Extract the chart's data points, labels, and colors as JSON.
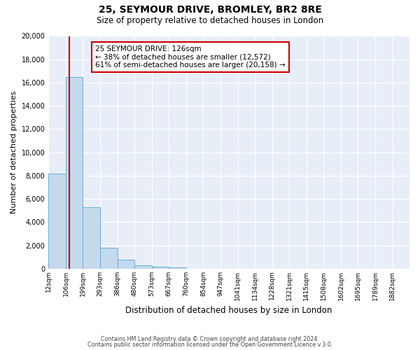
{
  "title": "25, SEYMOUR DRIVE, BROMLEY, BR2 8RE",
  "subtitle": "Size of property relative to detached houses in London",
  "xlabel": "Distribution of detached houses by size in London",
  "ylabel": "Number of detached properties",
  "bar_values": [
    8200,
    16500,
    5300,
    1800,
    750,
    300,
    150,
    100,
    0,
    0,
    0,
    0,
    0,
    0,
    0,
    0,
    0,
    0,
    0,
    0
  ],
  "bin_labels": [
    "12sqm",
    "106sqm",
    "199sqm",
    "293sqm",
    "386sqm",
    "480sqm",
    "573sqm",
    "667sqm",
    "760sqm",
    "854sqm",
    "947sqm",
    "1041sqm",
    "1134sqm",
    "1228sqm",
    "1321sqm",
    "1415sqm",
    "1508sqm",
    "1602sqm",
    "1695sqm",
    "1789sqm",
    "1882sqm"
  ],
  "bin_edges": [
    12,
    106,
    199,
    293,
    386,
    480,
    573,
    667,
    760,
    854,
    947,
    1041,
    1134,
    1228,
    1321,
    1415,
    1508,
    1602,
    1695,
    1789,
    1882
  ],
  "bar_color": "#c5d9ed",
  "bar_edge_color": "#6aadd5",
  "property_line_x": 126,
  "property_line_color": "#cc0000",
  "annotation_title": "25 SEYMOUR DRIVE: 126sqm",
  "annotation_line1": "← 38% of detached houses are smaller (12,572)",
  "annotation_line2": "61% of semi-detached houses are larger (20,158) →",
  "annotation_box_facecolor": "#ffffff",
  "annotation_box_edgecolor": "#cc0000",
  "ylim": [
    0,
    20000
  ],
  "yticks": [
    0,
    2000,
    4000,
    6000,
    8000,
    10000,
    12000,
    14000,
    16000,
    18000,
    20000
  ],
  "footer1": "Contains HM Land Registry data © Crown copyright and database right 2024.",
  "footer2": "Contains public sector information licensed under the Open Government Licence v.3.0.",
  "fig_bg_color": "#ffffff",
  "plot_bg_color": "#e8eef8"
}
